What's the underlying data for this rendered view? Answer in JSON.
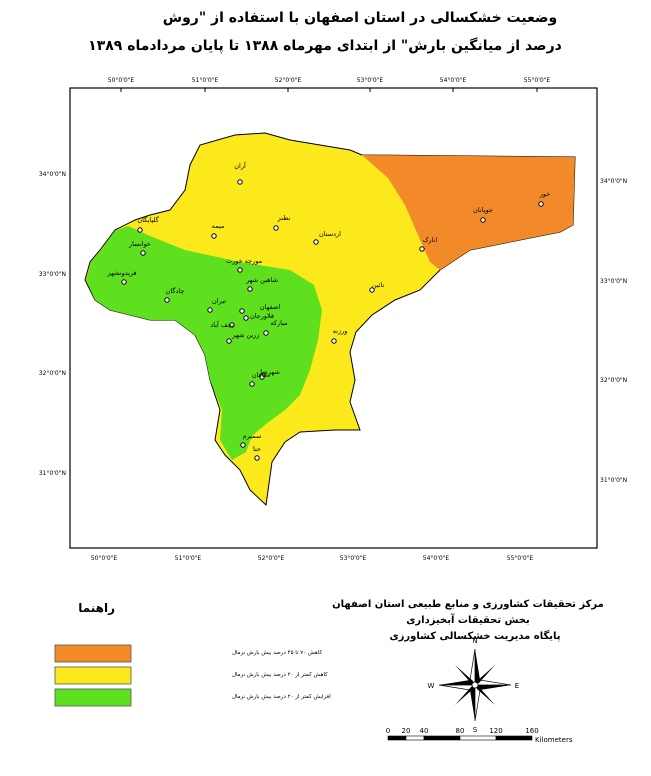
{
  "title": {
    "line1": "وضعیت خشکسالی در استان اصفهان با استفاده از \"روش",
    "line2": "درصد از میانگین بارش\" از ابتدای مهرماه ۱۳۸۸ تا پایان مردادماه ۱۳۸۹"
  },
  "map": {
    "longitudes": [
      "50°0'0\"E",
      "51°0'0\"E",
      "52°0'0\"E",
      "53°0'0\"E",
      "54°0'0\"E",
      "55°0'0\"E"
    ],
    "latitudes": [
      "34°0'0\"N",
      "33°0'0\"N",
      "32°0'0\"N",
      "31°0'0\"N"
    ],
    "cities": [
      "آران",
      "نطنز",
      "میمه",
      "گلپایگان",
      "خوانسار",
      "اردستان",
      "انارک",
      "جوپانان",
      "خور",
      "مورچه خورت",
      "شاهین شهر",
      "نائین",
      "فریدونشهر",
      "چادگان",
      "تیران",
      "اصفهان",
      "فلاورجان",
      "نجف آباد",
      "مبارکه",
      "زرین شهر",
      "ورزنه",
      "شهرضا",
      "دهاقان",
      "سمیرم",
      "حنا"
    ]
  },
  "legend": {
    "title": "راهنما",
    "items": [
      {
        "label": "کاهش ۷۰ تا ۴۵ درصد بیش بارش نرمال",
        "color": "#f28a2a"
      },
      {
        "label": "کاهش کمتر از ۲۰ درصد بیش بارش نرمال",
        "color": "#fbe91c"
      },
      {
        "label": "افزایش کمتر از ۲۰ درصد بیش بارش نرمال",
        "color": "#5ee01e"
      }
    ]
  },
  "credits": [
    "مرکز تحقیقات کشاورزی و منابع طبیعی استان اصفهان",
    "بخش تحقیقات آبخیزداری",
    "پایگاه مدیریت خشکسالی کشاورزی"
  ],
  "compass": {
    "n": "N",
    "e": "E",
    "s": "S",
    "w": "W"
  },
  "scale": {
    "ticks": [
      0,
      20,
      40,
      80,
      120,
      160
    ],
    "unit": "Kilometers"
  }
}
